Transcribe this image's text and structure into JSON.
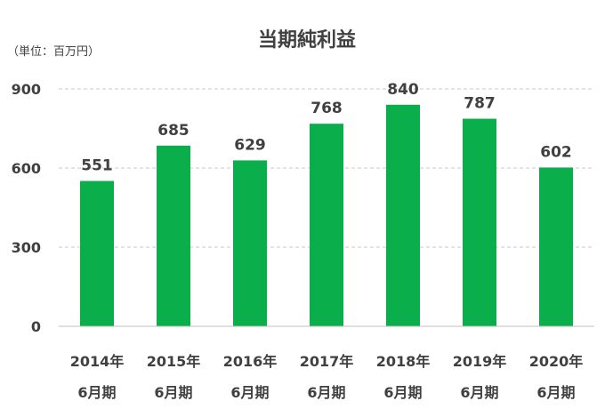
{
  "chart_data": {
    "type": "bar",
    "title": "当期純利益",
    "unit_label": "（単位：百万円）",
    "categories": [
      [
        "2014年",
        "6月期"
      ],
      [
        "2015年",
        "6月期"
      ],
      [
        "2016年",
        "6月期"
      ],
      [
        "2017年",
        "6月期"
      ],
      [
        "2018年",
        "6月期"
      ],
      [
        "2019年",
        "6月期"
      ],
      [
        "2020年",
        "6月期"
      ]
    ],
    "values": [
      551,
      685,
      629,
      768,
      840,
      787,
      602
    ],
    "ylim": [
      0,
      900
    ],
    "yticks": [
      0,
      300,
      600,
      900
    ],
    "grid": true,
    "bar_color": "#0aae4a",
    "grid_color": "#c8c8c8",
    "text_color": "#404040"
  }
}
